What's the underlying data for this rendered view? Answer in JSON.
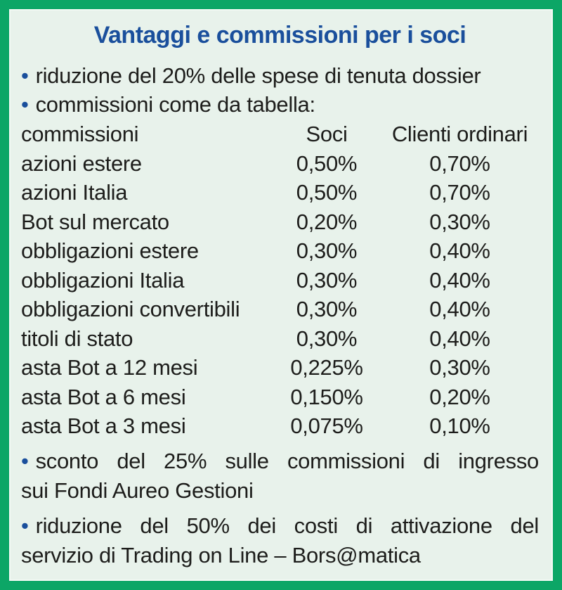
{
  "panel": {
    "title": "Vantaggi e commissioni per i soci",
    "bullet_char": "•",
    "bullets": {
      "dossier": "riduzione del 20% delle spese di tenuta dossier",
      "tabella": "commissioni come da tabella:",
      "fondi_line1": "sconto del 25% sulle commissioni di ingresso",
      "fondi_line2": "sui Fondi Aureo Gestioni",
      "trading_line1": "riduzione del 50% dei costi di attivazione del",
      "trading_line2": "servizio di Trading on Line – Bors@matica"
    },
    "table": {
      "headers": [
        "commissioni",
        "Soci",
        "Clienti ordinari"
      ],
      "rows": [
        [
          "azioni estere",
          "0,50%",
          "0,70%"
        ],
        [
          "azioni Italia",
          "0,50%",
          "0,70%"
        ],
        [
          "Bot sul mercato",
          "0,20%",
          "0,30%"
        ],
        [
          "obbligazioni estere",
          "0,30%",
          "0,40%"
        ],
        [
          "obbligazioni Italia",
          "0,30%",
          "0,40%"
        ],
        [
          "obbligazioni convertibili",
          "0,30%",
          "0,40%"
        ],
        [
          "titoli di stato",
          "0,30%",
          "0,40%"
        ],
        [
          "asta Bot a 12 mesi",
          "0,225%",
          "0,30%"
        ],
        [
          "asta Bot a 6 mesi",
          "0,150%",
          "0,20%"
        ],
        [
          "asta Bot a 3 mesi",
          "0,075%",
          "0,10%"
        ]
      ]
    },
    "colors": {
      "border_green": "#0CA666",
      "background_mint": "#E8F2EB",
      "title_blue": "#1A4F9C",
      "bullet_blue": "#1A4F9C",
      "text": "#1D1D1B"
    }
  }
}
